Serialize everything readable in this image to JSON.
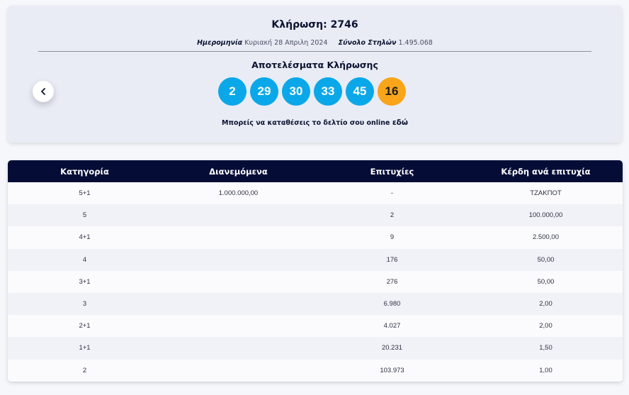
{
  "draw": {
    "title": "Κλήρωση: 2746",
    "date_label": "Ημερομηνία",
    "date_value": "Κυριακή 28 Απριλη 2024",
    "columns_label": "Σύνολο Στηλών",
    "columns_value": "1.495.068",
    "results_title": "Αποτελέσματα Κλήρωσης",
    "numbers": [
      "2",
      "29",
      "30",
      "33",
      "45"
    ],
    "joker": "16",
    "cta_text": "Μπορείς να καταθέσεις το δελτίο σου online",
    "cta_link": "εδώ",
    "prev_icon": "chevron-left-icon"
  },
  "colors": {
    "ball_blue": "#0aa8e8",
    "ball_joker": "#f9a51a",
    "header_navy": "#050d36"
  },
  "table": {
    "headers": [
      "Κατηγορία",
      "Διανεμόμενα",
      "Επιτυχίες",
      "Κέρδη ανά επιτυχία"
    ],
    "rows": [
      [
        "5+1",
        "1.000.000,00",
        "-",
        "ΤΖΑΚΠΟΤ"
      ],
      [
        "5",
        "",
        "2",
        "100.000,00"
      ],
      [
        "4+1",
        "",
        "9",
        "2.500,00"
      ],
      [
        "4",
        "",
        "176",
        "50,00"
      ],
      [
        "3+1",
        "",
        "276",
        "50,00"
      ],
      [
        "3",
        "",
        "6.980",
        "2,00"
      ],
      [
        "2+1",
        "",
        "4.027",
        "2,00"
      ],
      [
        "1+1",
        "",
        "20.231",
        "1,50"
      ],
      [
        "2",
        "",
        "103.973",
        "1,00"
      ]
    ]
  }
}
